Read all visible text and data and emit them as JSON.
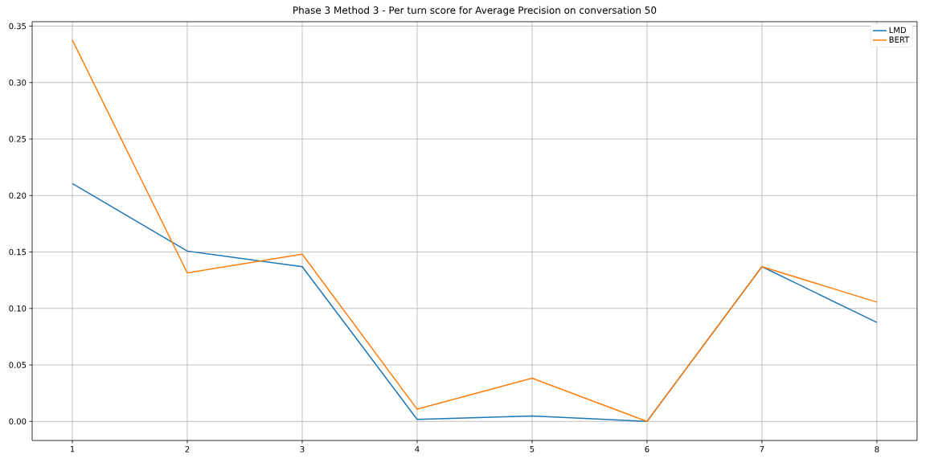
{
  "chart_data": {
    "type": "line",
    "title": "Phase 3 Method 3 - Per turn score for Average Precision on conversation 50",
    "x": [
      1,
      2,
      3,
      4,
      5,
      6,
      7,
      8
    ],
    "series": [
      {
        "name": "LMD",
        "color": "#1f77b4",
        "values": [
          0.2106,
          0.1508,
          0.137,
          0.0018,
          0.0048,
          0.0,
          0.137,
          0.0876
        ]
      },
      {
        "name": "BERT",
        "color": "#ff7f0e",
        "values": [
          0.3376,
          0.1315,
          0.148,
          0.0108,
          0.0383,
          0.0,
          0.137,
          0.1056
        ]
      }
    ],
    "xlim": [
      0.65,
      8.35
    ],
    "ylim": [
      -0.0169,
      0.3539
    ],
    "xticks": [
      1,
      2,
      3,
      4,
      5,
      6,
      7,
      8
    ],
    "yticks": [
      {
        "value": 0,
        "label": "0.00"
      },
      {
        "value": 0.05,
        "label": "0.05"
      },
      {
        "value": 0.1,
        "label": "0.10"
      },
      {
        "value": 0.15,
        "label": "0.15"
      },
      {
        "value": 0.2,
        "label": "0.20"
      },
      {
        "value": 0.25,
        "label": "0.25"
      },
      {
        "value": 0.3,
        "label": "0.30"
      },
      {
        "value": 0.35,
        "label": "0.35"
      }
    ],
    "grid": true,
    "legend": "top right"
  }
}
